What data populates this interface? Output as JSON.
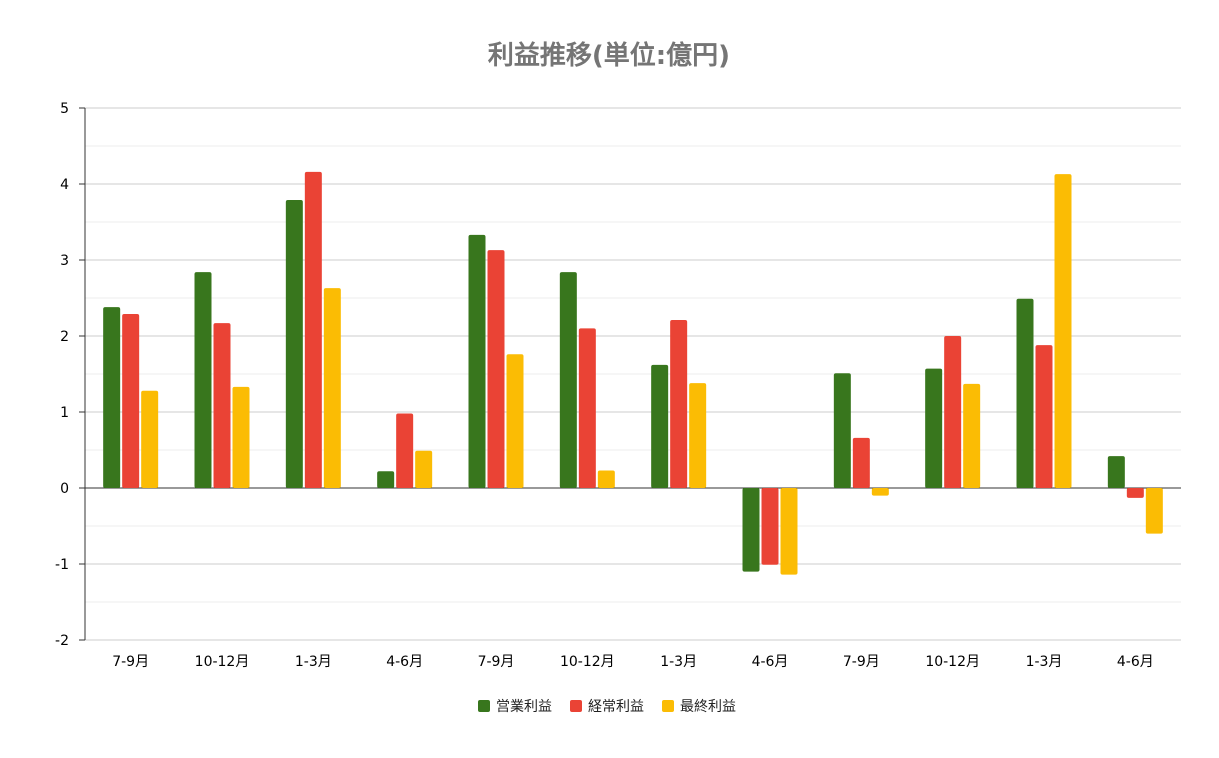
{
  "chart_data": {
    "type": "bar",
    "title": "利益推移(単位:億円)",
    "xlabel": "",
    "ylabel": "",
    "ylim": [
      -2,
      5
    ],
    "yticks": [
      -2,
      -1,
      0,
      1,
      2,
      3,
      4,
      5
    ],
    "grid": true,
    "legend_position": "bottom",
    "categories": [
      "7-9月",
      "10-12月",
      "1-3月",
      "4-6月",
      "7-9月",
      "10-12月",
      "1-3月",
      "4-6月",
      "7-9月",
      "10-12月",
      "1-3月",
      "4-6月"
    ],
    "series": [
      {
        "name": "営業利益",
        "color": "#38761d",
        "values": [
          2.38,
          2.84,
          3.79,
          0.22,
          3.33,
          2.84,
          1.62,
          -1.1,
          1.51,
          1.57,
          2.49,
          0.42
        ]
      },
      {
        "name": "経常利益",
        "color": "#ea4335",
        "values": [
          2.29,
          2.17,
          4.16,
          0.98,
          3.13,
          2.1,
          2.21,
          -1.01,
          0.66,
          2.0,
          1.88,
          -0.13
        ]
      },
      {
        "name": "最終利益",
        "color": "#fbbc04",
        "values": [
          1.28,
          1.33,
          2.63,
          0.49,
          1.76,
          0.23,
          1.38,
          -1.14,
          -0.1,
          1.37,
          4.13,
          -0.6
        ]
      }
    ]
  }
}
